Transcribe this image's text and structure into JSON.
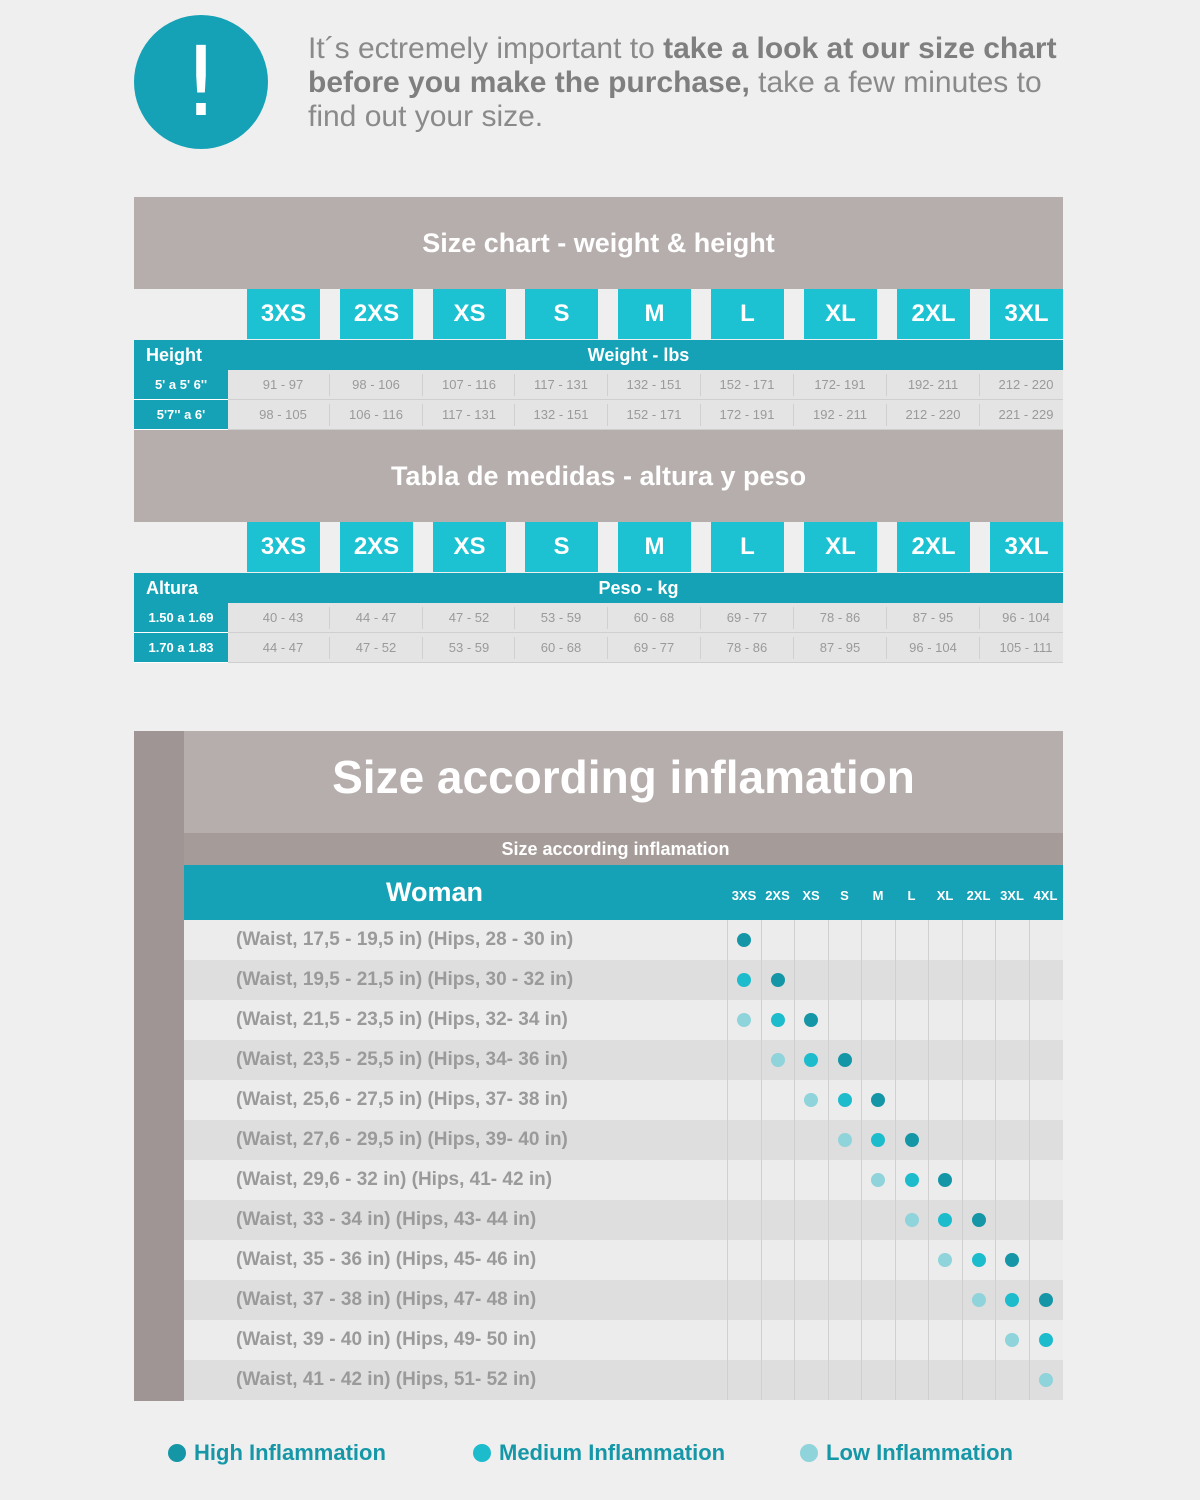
{
  "intro": {
    "icon": "exclamation-icon",
    "mark": "!",
    "t1": "It´s ectremely important to ",
    "b1": "take a look at our size chart before you make the purchase,",
    "t2": " take a few minutes to find out your size."
  },
  "colors": {
    "teal": "#16a2b6",
    "cyan": "#1cc2d2",
    "gray": "#b5aeac",
    "high": "#1596a6",
    "medium": "#1cbccc",
    "low": "#8fd3db"
  },
  "sizes": [
    "3XS",
    "2XS",
    "XS",
    "S",
    "M",
    "L",
    "XL",
    "2XL",
    "3XL"
  ],
  "table_lbs": {
    "title": "Size chart - weight & height",
    "row_header": "Height",
    "col_header": "Weight - lbs",
    "rows": [
      {
        "label": "5' a 5' 6''",
        "values": [
          "91 - 97",
          "98 - 106",
          "107 - 116",
          "117 - 131",
          "132 - 151",
          "152 - 171",
          "172- 191",
          "192- 211",
          "212 -  220"
        ]
      },
      {
        "label": "5'7'' a 6'",
        "values": [
          "98 - 105",
          "106 - 116",
          "117 - 131",
          "132 - 151",
          "152 - 171",
          "172 - 191",
          "192 - 211",
          "212 - 220",
          "221 - 229"
        ]
      }
    ]
  },
  "table_kg": {
    "title": "Tabla de medidas - altura y peso",
    "row_header": "Altura",
    "col_header": "Peso - kg",
    "rows": [
      {
        "label": "1.50 a 1.69",
        "values": [
          "40 - 43",
          "44 - 47",
          "47 - 52",
          "53 - 59",
          "60 - 68",
          "69 - 77",
          "78 - 86",
          "87 - 95",
          "96 - 104"
        ]
      },
      {
        "label": "1.70 a 1.83",
        "values": [
          "44 - 47",
          "47 - 52",
          "53 - 59",
          "60 - 68",
          "69 - 77",
          "78 - 86",
          "87 - 95",
          "96 - 104",
          "105 - 111"
        ]
      }
    ]
  },
  "inflammation": {
    "title": "Size according inflamation",
    "subtitle": "Size according inflamation",
    "group": "Woman",
    "sizes": [
      "3XS",
      "2XS",
      "XS",
      "S",
      "M",
      "L",
      "XL",
      "2XL",
      "3XL",
      "4XL"
    ],
    "rows": [
      {
        "label": "(Waist, 17,5 - 19,5 in) (Hips, 28 - 30 in)",
        "dots": {
          "3XS": "high"
        }
      },
      {
        "label": "(Waist, 19,5 - 21,5 in) (Hips, 30 - 32 in)",
        "dots": {
          "3XS": "medium",
          "2XS": "high"
        }
      },
      {
        "label": "(Waist, 21,5 - 23,5 in) (Hips, 32- 34 in)",
        "dots": {
          "3XS": "low",
          "2XS": "medium",
          "XS": "high"
        }
      },
      {
        "label": "(Waist, 23,5 - 25,5 in) (Hips, 34- 36 in)",
        "dots": {
          "2XS": "low",
          "XS": "medium",
          "S": "high"
        }
      },
      {
        "label": "(Waist, 25,6 - 27,5 in) (Hips, 37- 38 in)",
        "dots": {
          "XS": "low",
          "S": "medium",
          "M": "high"
        }
      },
      {
        "label": "(Waist, 27,6 - 29,5 in) (Hips, 39- 40 in)",
        "dots": {
          "S": "low",
          "M": "medium",
          "L": "high"
        }
      },
      {
        "label": "(Waist, 29,6 - 32 in) (Hips, 41- 42 in)",
        "dots": {
          "M": "low",
          "L": "medium",
          "XL": "high"
        }
      },
      {
        "label": "(Waist, 33 - 34 in) (Hips, 43- 44 in)",
        "dots": {
          "L": "low",
          "XL": "medium",
          "2XL": "high"
        }
      },
      {
        "label": "(Waist, 35 - 36 in) (Hips, 45- 46 in)",
        "dots": {
          "XL": "low",
          "2XL": "medium",
          "3XL": "high"
        }
      },
      {
        "label": "(Waist, 37 - 38 in) (Hips, 47- 48 in)",
        "dots": {
          "2XL": "low",
          "3XL": "medium",
          "4XL": "high"
        }
      },
      {
        "label": "(Waist, 39 - 40 in) (Hips, 49- 50 in)",
        "dots": {
          "3XL": "low",
          "4XL": "medium"
        }
      },
      {
        "label": "(Waist, 41 - 42 in) (Hips, 51- 52 in)",
        "dots": {
          "4XL": "low"
        }
      }
    ]
  },
  "legend": [
    {
      "level": "high",
      "label": "High Inflammation"
    },
    {
      "level": "medium",
      "label": "Medium Inflammation"
    },
    {
      "level": "low",
      "label": "Low Inflammation"
    }
  ]
}
